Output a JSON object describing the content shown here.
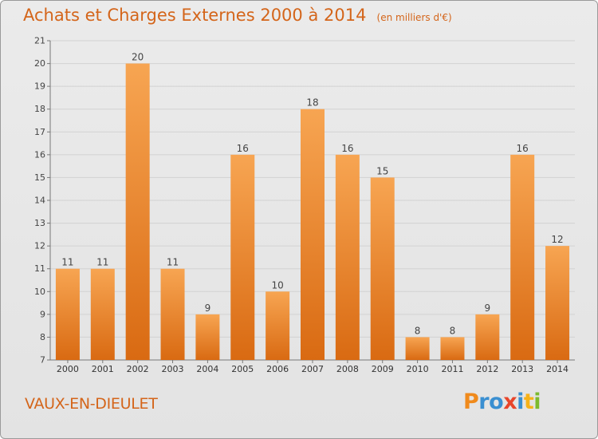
{
  "header": {
    "title": "Achats et Charges Externes 2000 à 2014",
    "unit": "(en milliers d'€)"
  },
  "footer": {
    "commune": "VAUX-EN-DIEULET",
    "logo_text": "Proxiti",
    "logo_colors": [
      "#f08a1c",
      "#3a8fd1",
      "#3a8fd1",
      "#e8452a",
      "#3a8fd1",
      "#f6b21a",
      "#7cba2f"
    ]
  },
  "colors": {
    "bar_top": "#f7a552",
    "bar_bottom": "#d96a12",
    "title": "#d4651a",
    "grid": "#d2d2d2"
  },
  "chart_data": {
    "type": "bar",
    "title": "Achats et Charges Externes 2000 à 2014",
    "subtitle": "(en milliers d'€)",
    "xlabel": "",
    "ylabel": "",
    "categories": [
      "2000",
      "2001",
      "2002",
      "2003",
      "2004",
      "2005",
      "2006",
      "2007",
      "2008",
      "2009",
      "2010",
      "2011",
      "2012",
      "2013",
      "2014"
    ],
    "values": [
      11,
      11,
      20,
      11,
      9,
      16,
      10,
      18,
      16,
      15,
      8,
      8,
      9,
      16,
      12
    ],
    "ylim": [
      7,
      21
    ],
    "yticks": [
      7,
      8,
      9,
      10,
      11,
      12,
      13,
      14,
      15,
      16,
      17,
      18,
      19,
      20,
      21
    ],
    "grid": true,
    "data_labels": true
  }
}
